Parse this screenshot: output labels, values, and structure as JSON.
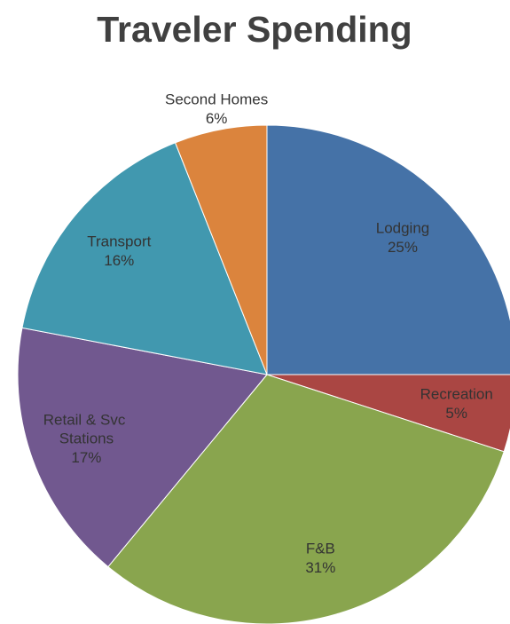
{
  "chart_data": {
    "type": "pie",
    "title": "Traveler Spending",
    "categories": [
      "Lodging",
      "Recreation",
      "F&B",
      "Retail & Svc Stations",
      "Transport",
      "Second Homes"
    ],
    "values": [
      25,
      5,
      31,
      17,
      16,
      6
    ],
    "value_labels": [
      "25%",
      "5%",
      "31%",
      "17%",
      "16%",
      "6%"
    ],
    "colors": [
      "#4572a7",
      "#aa4643",
      "#89a54e",
      "#71588f",
      "#4198af",
      "#db843d"
    ]
  }
}
